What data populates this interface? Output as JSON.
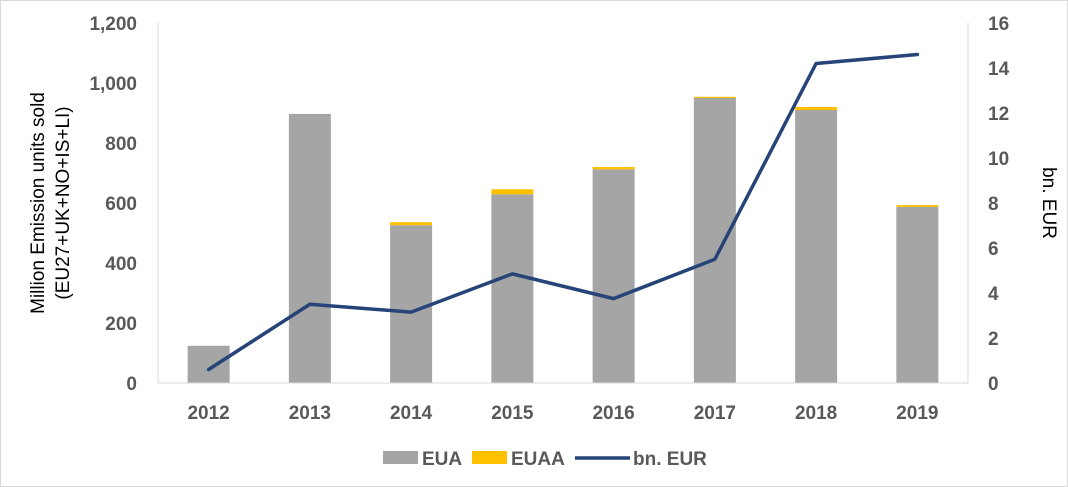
{
  "chart_data": {
    "type": "bar",
    "categories": [
      "2012",
      "2013",
      "2014",
      "2015",
      "2016",
      "2017",
      "2018",
      "2019"
    ],
    "series": [
      {
        "name": "EUA",
        "type": "bar",
        "axis": "left",
        "color": "#a5a5a5",
        "values": [
          124,
          897,
          526,
          629,
          712,
          950,
          910,
          587
        ]
      },
      {
        "name": "EUAA",
        "type": "bar",
        "axis": "left",
        "color": "#ffc000",
        "values": [
          0,
          0,
          10,
          17,
          8,
          4,
          10,
          6
        ]
      },
      {
        "name": "bn. EUR",
        "type": "line",
        "axis": "right",
        "color": "#264478",
        "values": [
          0.6,
          3.5,
          3.15,
          4.85,
          3.75,
          5.5,
          14.2,
          14.6
        ]
      }
    ],
    "ylabel_left_lines": [
      "Million Emission units sold",
      "(EU27+UK+NO+IS+LI)"
    ],
    "ylabel_right": "bn. EUR",
    "ylim_left": [
      0,
      1200
    ],
    "yticks_left": [
      "0",
      "200",
      "400",
      "600",
      "800",
      "1,000",
      "1,200"
    ],
    "ylim_right": [
      0,
      16
    ],
    "yticks_right": [
      "0",
      "2",
      "4",
      "6",
      "8",
      "10",
      "12",
      "14",
      "16"
    ],
    "gridlines": false,
    "legend_position": "bottom",
    "stacked": true
  }
}
